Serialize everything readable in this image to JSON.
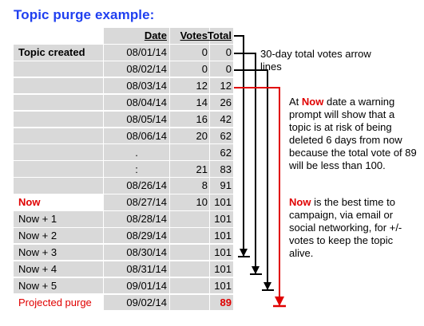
{
  "title": "Topic purge example:",
  "table": {
    "headers": [
      "",
      "Date",
      "Votes",
      "Total"
    ],
    "rows": [
      {
        "label": "Topic created",
        "date": "08/01/14",
        "votes": "0",
        "total": "0",
        "label_style": "bold"
      },
      {
        "label": "",
        "date": "08/02/14",
        "votes": "0",
        "total": "0"
      },
      {
        "label": "",
        "date": "08/03/14",
        "votes": "12",
        "total": "12"
      },
      {
        "label": "",
        "date": "08/04/14",
        "votes": "14",
        "total": "26"
      },
      {
        "label": "",
        "date": "08/05/14",
        "votes": "16",
        "total": "42"
      },
      {
        "label": "",
        "date": "08/06/14",
        "votes": "20",
        "total": "62"
      },
      {
        "label": "",
        "date": ".",
        "votes": "",
        "total": "62",
        "date_style": "center"
      },
      {
        "label": "",
        "date": ":",
        "votes": "21",
        "total": "83",
        "date_style": "center"
      },
      {
        "label": "",
        "date": "08/26/14",
        "votes": "8",
        "total": "91"
      },
      {
        "label": "Now",
        "date": "08/27/14",
        "votes": "10",
        "total": "101",
        "label_style": "red-bold",
        "plain": true
      },
      {
        "label": "Now + 1",
        "date": "08/28/14",
        "votes": "",
        "total": "101"
      },
      {
        "label": "Now + 2",
        "date": "08/29/14",
        "votes": "",
        "total": "101"
      },
      {
        "label": "Now + 3",
        "date": "08/30/14",
        "votes": "",
        "total": "101"
      },
      {
        "label": "Now + 4",
        "date": "08/31/14",
        "votes": "",
        "total": "101"
      },
      {
        "label": "Now + 5",
        "date": "09/01/14",
        "votes": "",
        "total": "101"
      },
      {
        "label": "Projected purge",
        "date": "09/02/14",
        "votes": "",
        "total": "89",
        "label_style": "red",
        "total_style": "red-bold",
        "plain": true
      }
    ]
  },
  "notes": {
    "arrow_note": "30-day total votes arrow lines",
    "warning_prefix_1": "At ",
    "warning_now_1": "Now",
    "warning_text": " date a warning prompt will show that a topic is at risk of being deleted 6 days from now because the total vote of 89 will be less than 100.",
    "campaign_now": "Now",
    "campaign_text": " is the best time to campaign, via email or social networking, for +/- votes to keep the topic alive."
  },
  "colors": {
    "title": "#1f3ff0",
    "cell_bg": "#d9d9d9",
    "accent_red": "#e00000",
    "arrow_black": "#000000"
  }
}
